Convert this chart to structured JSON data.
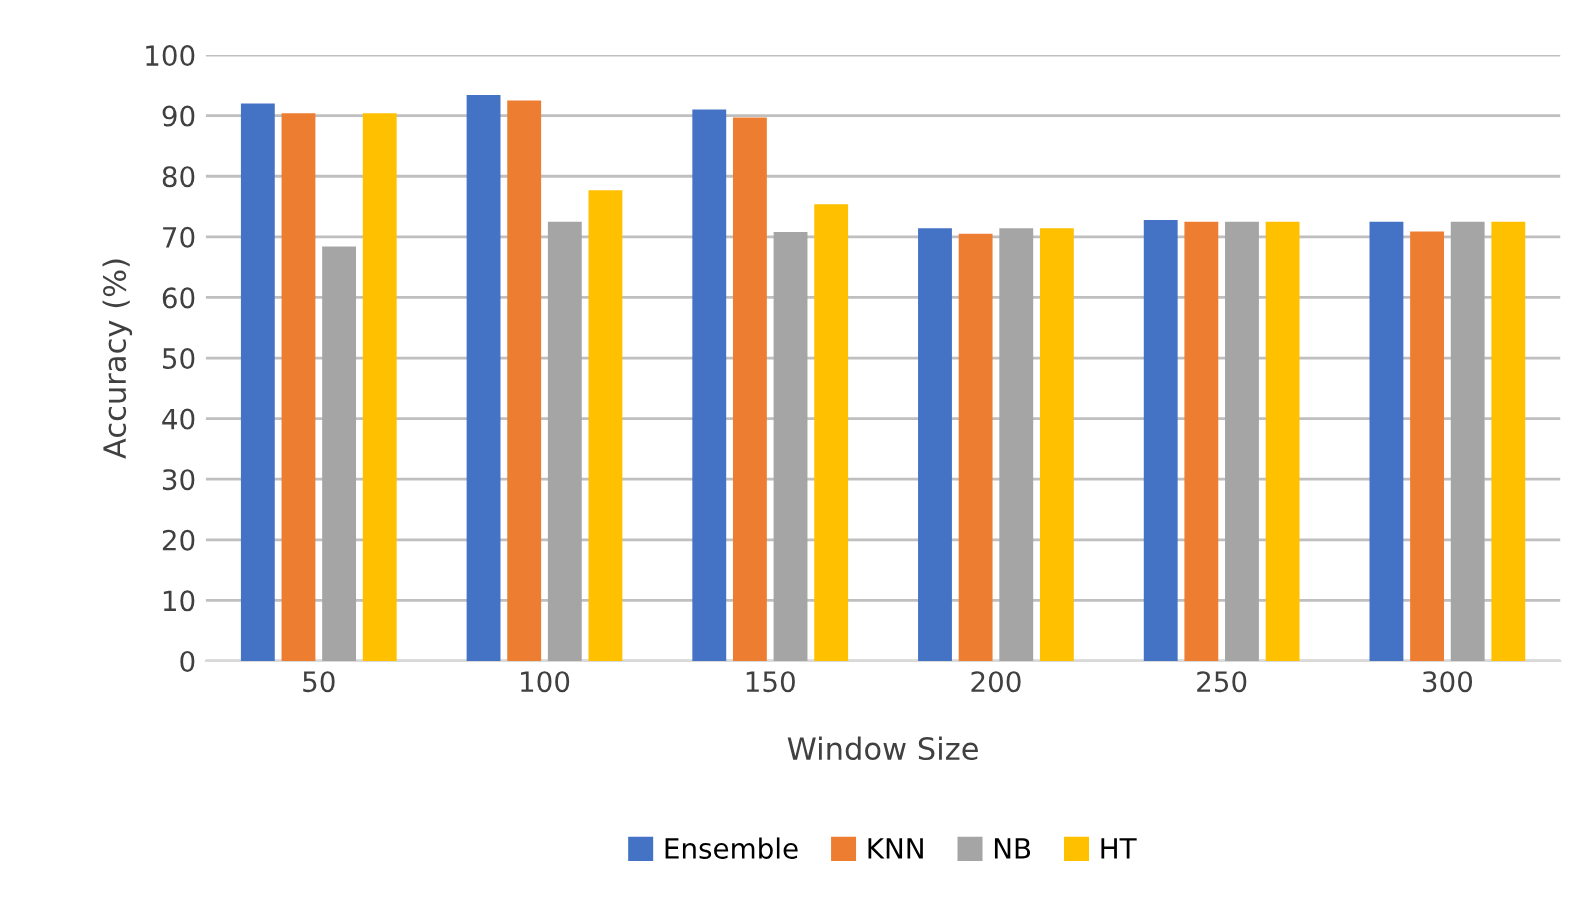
{
  "chart_data": {
    "type": "bar",
    "xlabel": "Window Size",
    "ylabel": "Accuracy (%)",
    "categories": [
      "50",
      "100",
      "150",
      "200",
      "250",
      "300"
    ],
    "series": [
      {
        "name": "Ensemble",
        "color": "#4472c4",
        "values": [
          92,
          93.4,
          91,
          71.4,
          72.8,
          72.5
        ]
      },
      {
        "name": "KNN",
        "color": "#ed7d31",
        "values": [
          90.4,
          92.5,
          89.7,
          70.5,
          72.5,
          70.9
        ]
      },
      {
        "name": "NB",
        "color": "#a5a5a5",
        "values": [
          68.4,
          72.5,
          70.8,
          71.4,
          72.5,
          72.5
        ]
      },
      {
        "name": "HT",
        "color": "#ffc000",
        "values": [
          90.4,
          77.7,
          75.4,
          71.4,
          72.5,
          72.5
        ]
      }
    ],
    "ylim": [
      0,
      100
    ],
    "yticks": [
      0,
      10,
      20,
      30,
      40,
      50,
      60,
      70,
      80,
      90,
      100
    ],
    "grid": "y",
    "legend": "bottom"
  }
}
